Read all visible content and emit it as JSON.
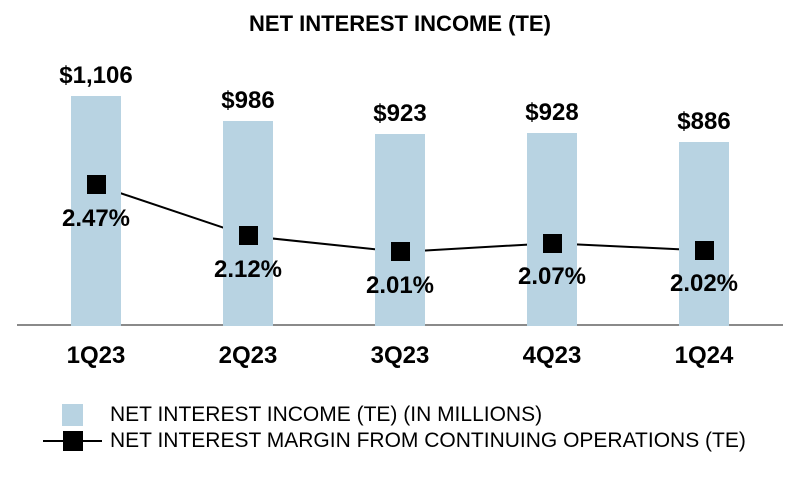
{
  "chart_data": {
    "type": "bar",
    "title": "NET INTEREST INCOME (TE)",
    "categories": [
      "1Q23",
      "2Q23",
      "3Q23",
      "4Q23",
      "1Q24"
    ],
    "series": [
      {
        "name": "NET INTEREST INCOME (TE) (IN MILLIONS)",
        "type": "bar",
        "values": [
          1106,
          986,
          923,
          928,
          886
        ],
        "labels": [
          "$1,106",
          "$986",
          "$923",
          "$928",
          "$886"
        ],
        "color": "#b8d3e2"
      },
      {
        "name": "NET INTEREST MARGIN FROM CONTINUING OPERATIONS (TE)",
        "type": "line",
        "marker": "square",
        "values": [
          2.47,
          2.12,
          2.01,
          2.07,
          2.02
        ],
        "labels": [
          "2.47%",
          "2.12%",
          "2.01%",
          "2.07%",
          "2.02%"
        ],
        "color": "#000000"
      }
    ],
    "xlabel": "",
    "ylabel": "",
    "bar_ylim": [
      0,
      1106
    ],
    "line_ylim": [
      1.5,
      2.47
    ],
    "grid": false,
    "value_axis_visible": false,
    "legend_position": "bottom-left",
    "axis_line_color": "#8a8a8a",
    "text_color": "#000000",
    "background_color": "#ffffff"
  }
}
